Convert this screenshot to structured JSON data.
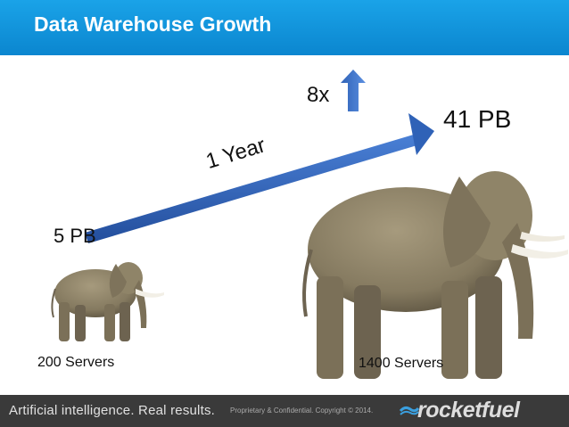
{
  "header": {
    "title": "Data Warehouse Growth"
  },
  "graphic": {
    "start_size": "5 PB",
    "end_size": "41 PB",
    "multiplier": "8x",
    "duration": "1 Year",
    "start_servers": "200 Servers",
    "end_servers": "1400 Servers",
    "arrow_color": "#2f62b7",
    "icons": [
      "elephant-small",
      "elephant-large",
      "up-arrow-icon"
    ]
  },
  "footer": {
    "tagline": "Artificial intelligence. Real results.",
    "legal": "Proprietary & Confidential. Copyright © 2014.",
    "brand": "rocketfuel"
  }
}
